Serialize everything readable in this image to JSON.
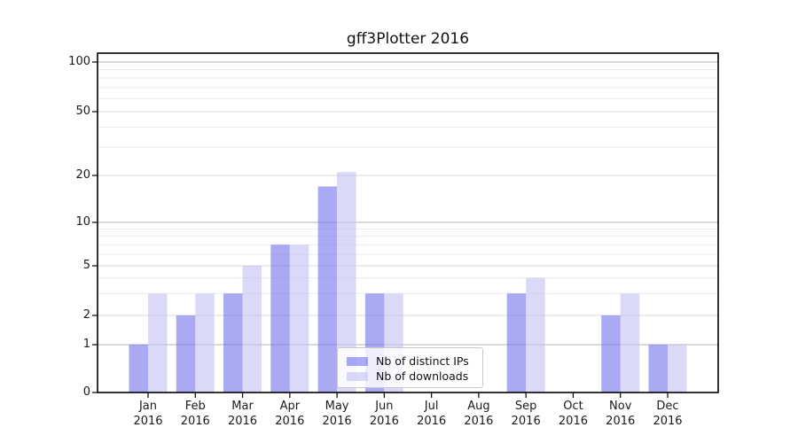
{
  "chart_data": {
    "type": "bar",
    "title": "gff3Plotter 2016",
    "year": "2016",
    "categories": [
      "Jan",
      "Feb",
      "Mar",
      "Apr",
      "May",
      "Jun",
      "Jul",
      "Aug",
      "Sep",
      "Oct",
      "Nov",
      "Dec"
    ],
    "series": [
      {
        "name": "Nb of distinct IPs",
        "key": "distinct-ips",
        "color": "#7070ed",
        "rendered_color": "#a9a9f4",
        "alpha": 0.6,
        "values": [
          1,
          2,
          3,
          7,
          17,
          3,
          0,
          0,
          3,
          0,
          2,
          1
        ]
      },
      {
        "name": "Nb of downloads",
        "key": "downloads",
        "color": "#c1c1f3",
        "rendered_color": "#dadaf8",
        "alpha": 0.6,
        "values": [
          3,
          3,
          5,
          7,
          21,
          3,
          0,
          0,
          4,
          0,
          3,
          1
        ]
      }
    ],
    "xlabel": "",
    "ylabel": "",
    "yscale": "log-like with zero baseline",
    "yticks": [
      0,
      1,
      2,
      5,
      10,
      20,
      50,
      100
    ],
    "ytick_labels": [
      "0",
      "1",
      "2",
      "5",
      "10",
      "20",
      "50",
      "100"
    ],
    "major_gridline_values": [
      1,
      10,
      100
    ],
    "labeled_minor_gridline_values": [
      2,
      5,
      20,
      50
    ],
    "minor_gridline_values": [
      3,
      4,
      6,
      7,
      8,
      9,
      30,
      40,
      60,
      70,
      80,
      90
    ],
    "ylim": [
      0,
      110
    ],
    "grid": true,
    "legend_position": "lower center, inside axes"
  },
  "legend": {
    "items": [
      {
        "label": "Nb of distinct IPs",
        "color": "#7070ed"
      },
      {
        "label": "Nb of downloads",
        "color": "#c1c1f3"
      }
    ]
  },
  "colors": {
    "major_grid": "#b3b3b3",
    "labeled_grid": "#d9d9d9",
    "minor_grid": "#ebebeb",
    "spine": "#000000",
    "text": "#1a1a1a"
  }
}
